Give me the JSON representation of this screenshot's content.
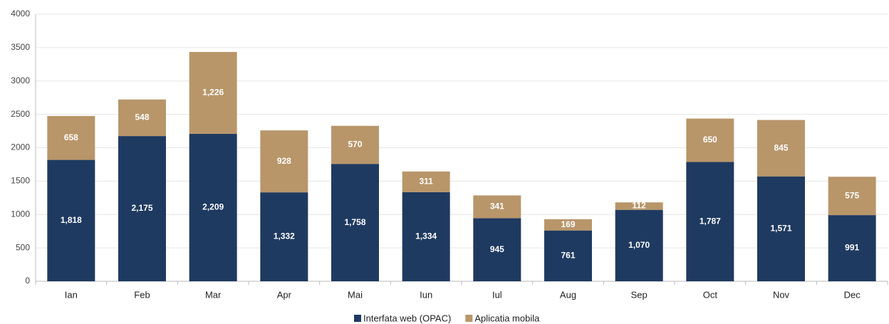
{
  "chart_data": {
    "type": "stacked_bar",
    "categories": [
      "Ian",
      "Feb",
      "Mar",
      "Apr",
      "Mai",
      "Iun",
      "Iul",
      "Aug",
      "Sep",
      "Oct",
      "Nov",
      "Dec"
    ],
    "series": [
      {
        "name": "Interfata web (OPAC)",
        "color": "#1f3a60",
        "values": [
          1818,
          2175,
          2209,
          1332,
          1758,
          1334,
          945,
          761,
          1070,
          1787,
          1571,
          991
        ],
        "value_labels": [
          "1,818",
          "2,175",
          "2,209",
          "1,332",
          "1,758",
          "1,334",
          "945",
          "761",
          "1,070",
          "1,787",
          "1,571",
          "991"
        ]
      },
      {
        "name": "Aplicatia mobila",
        "color": "#b8966a",
        "values": [
          658,
          548,
          1226,
          928,
          570,
          311,
          341,
          169,
          112,
          650,
          845,
          575
        ],
        "value_labels": [
          "658",
          "548",
          "1,226",
          "928",
          "570",
          "311",
          "341",
          "169",
          "112",
          "650",
          "845",
          "575"
        ]
      }
    ],
    "ylim": [
      0,
      4000
    ],
    "yticks": [
      0,
      500,
      1000,
      1500,
      2000,
      2500,
      3000,
      3500,
      4000
    ],
    "grid": true,
    "legend": "bottom"
  }
}
